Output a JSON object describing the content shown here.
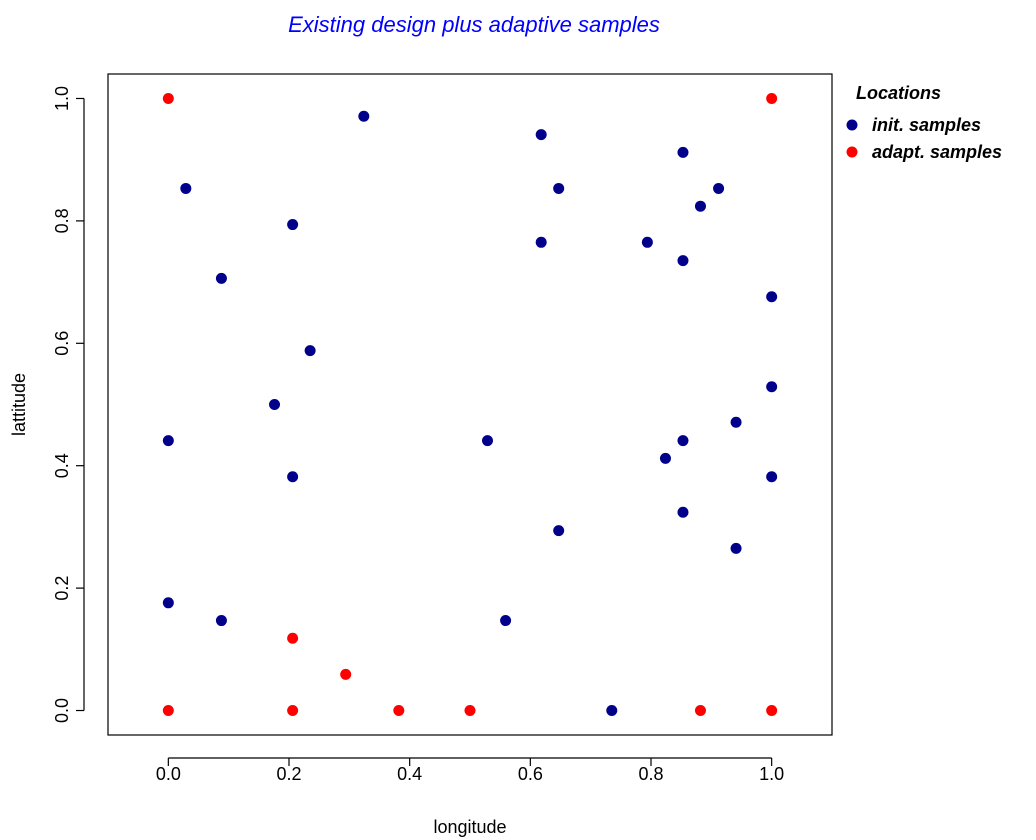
{
  "chart_data": {
    "type": "scatter",
    "title": "Existing design plus adaptive samples",
    "title_color": "#0000ff",
    "xlabel": "longitude",
    "ylabel": "lattitude",
    "xlim": [
      -0.1,
      1.1
    ],
    "ylim": [
      -0.04,
      1.04
    ],
    "x_ticks": [
      0.0,
      0.2,
      0.4,
      0.6,
      0.8,
      1.0
    ],
    "x_tick_labels": [
      "0.0",
      "0.2",
      "0.4",
      "0.6",
      "0.8",
      "1.0"
    ],
    "y_ticks": [
      0.0,
      0.2,
      0.4,
      0.6,
      0.8,
      1.0
    ],
    "y_tick_labels": [
      "0.0",
      "0.2",
      "0.4",
      "0.6",
      "0.8",
      "1.0"
    ],
    "grid": false,
    "legend": {
      "title": "Locations",
      "placement": "right-outside"
    },
    "series": [
      {
        "name": "init. samples",
        "color": "#00008b",
        "points": [
          [
            0.029,
            0.853
          ],
          [
            0.088,
            0.706
          ],
          [
            0.206,
            0.794
          ],
          [
            0.235,
            0.588
          ],
          [
            0.176,
            0.5
          ],
          [
            0.0,
            0.441
          ],
          [
            0.206,
            0.382
          ],
          [
            0.0,
            0.176
          ],
          [
            0.088,
            0.147
          ],
          [
            0.324,
            0.971
          ],
          [
            0.618,
            0.941
          ],
          [
            0.647,
            0.853
          ],
          [
            0.618,
            0.765
          ],
          [
            0.853,
            0.912
          ],
          [
            0.912,
            0.853
          ],
          [
            0.882,
            0.824
          ],
          [
            0.794,
            0.765
          ],
          [
            0.853,
            0.735
          ],
          [
            1.0,
            0.676
          ],
          [
            1.0,
            0.529
          ],
          [
            0.941,
            0.471
          ],
          [
            0.853,
            0.441
          ],
          [
            0.824,
            0.412
          ],
          [
            1.0,
            0.382
          ],
          [
            0.853,
            0.324
          ],
          [
            0.941,
            0.265
          ],
          [
            0.529,
            0.441
          ],
          [
            0.647,
            0.294
          ],
          [
            0.559,
            0.147
          ],
          [
            0.735,
            0.0
          ]
        ]
      },
      {
        "name": "adapt. samples",
        "color": "#ff0000",
        "points": [
          [
            0.0,
            1.0
          ],
          [
            1.0,
            1.0
          ],
          [
            0.206,
            0.118
          ],
          [
            0.294,
            0.059
          ],
          [
            0.0,
            0.0
          ],
          [
            0.206,
            0.0
          ],
          [
            0.382,
            0.0
          ],
          [
            0.5,
            0.0
          ],
          [
            0.882,
            0.0
          ],
          [
            1.0,
            0.0
          ]
        ]
      }
    ]
  }
}
